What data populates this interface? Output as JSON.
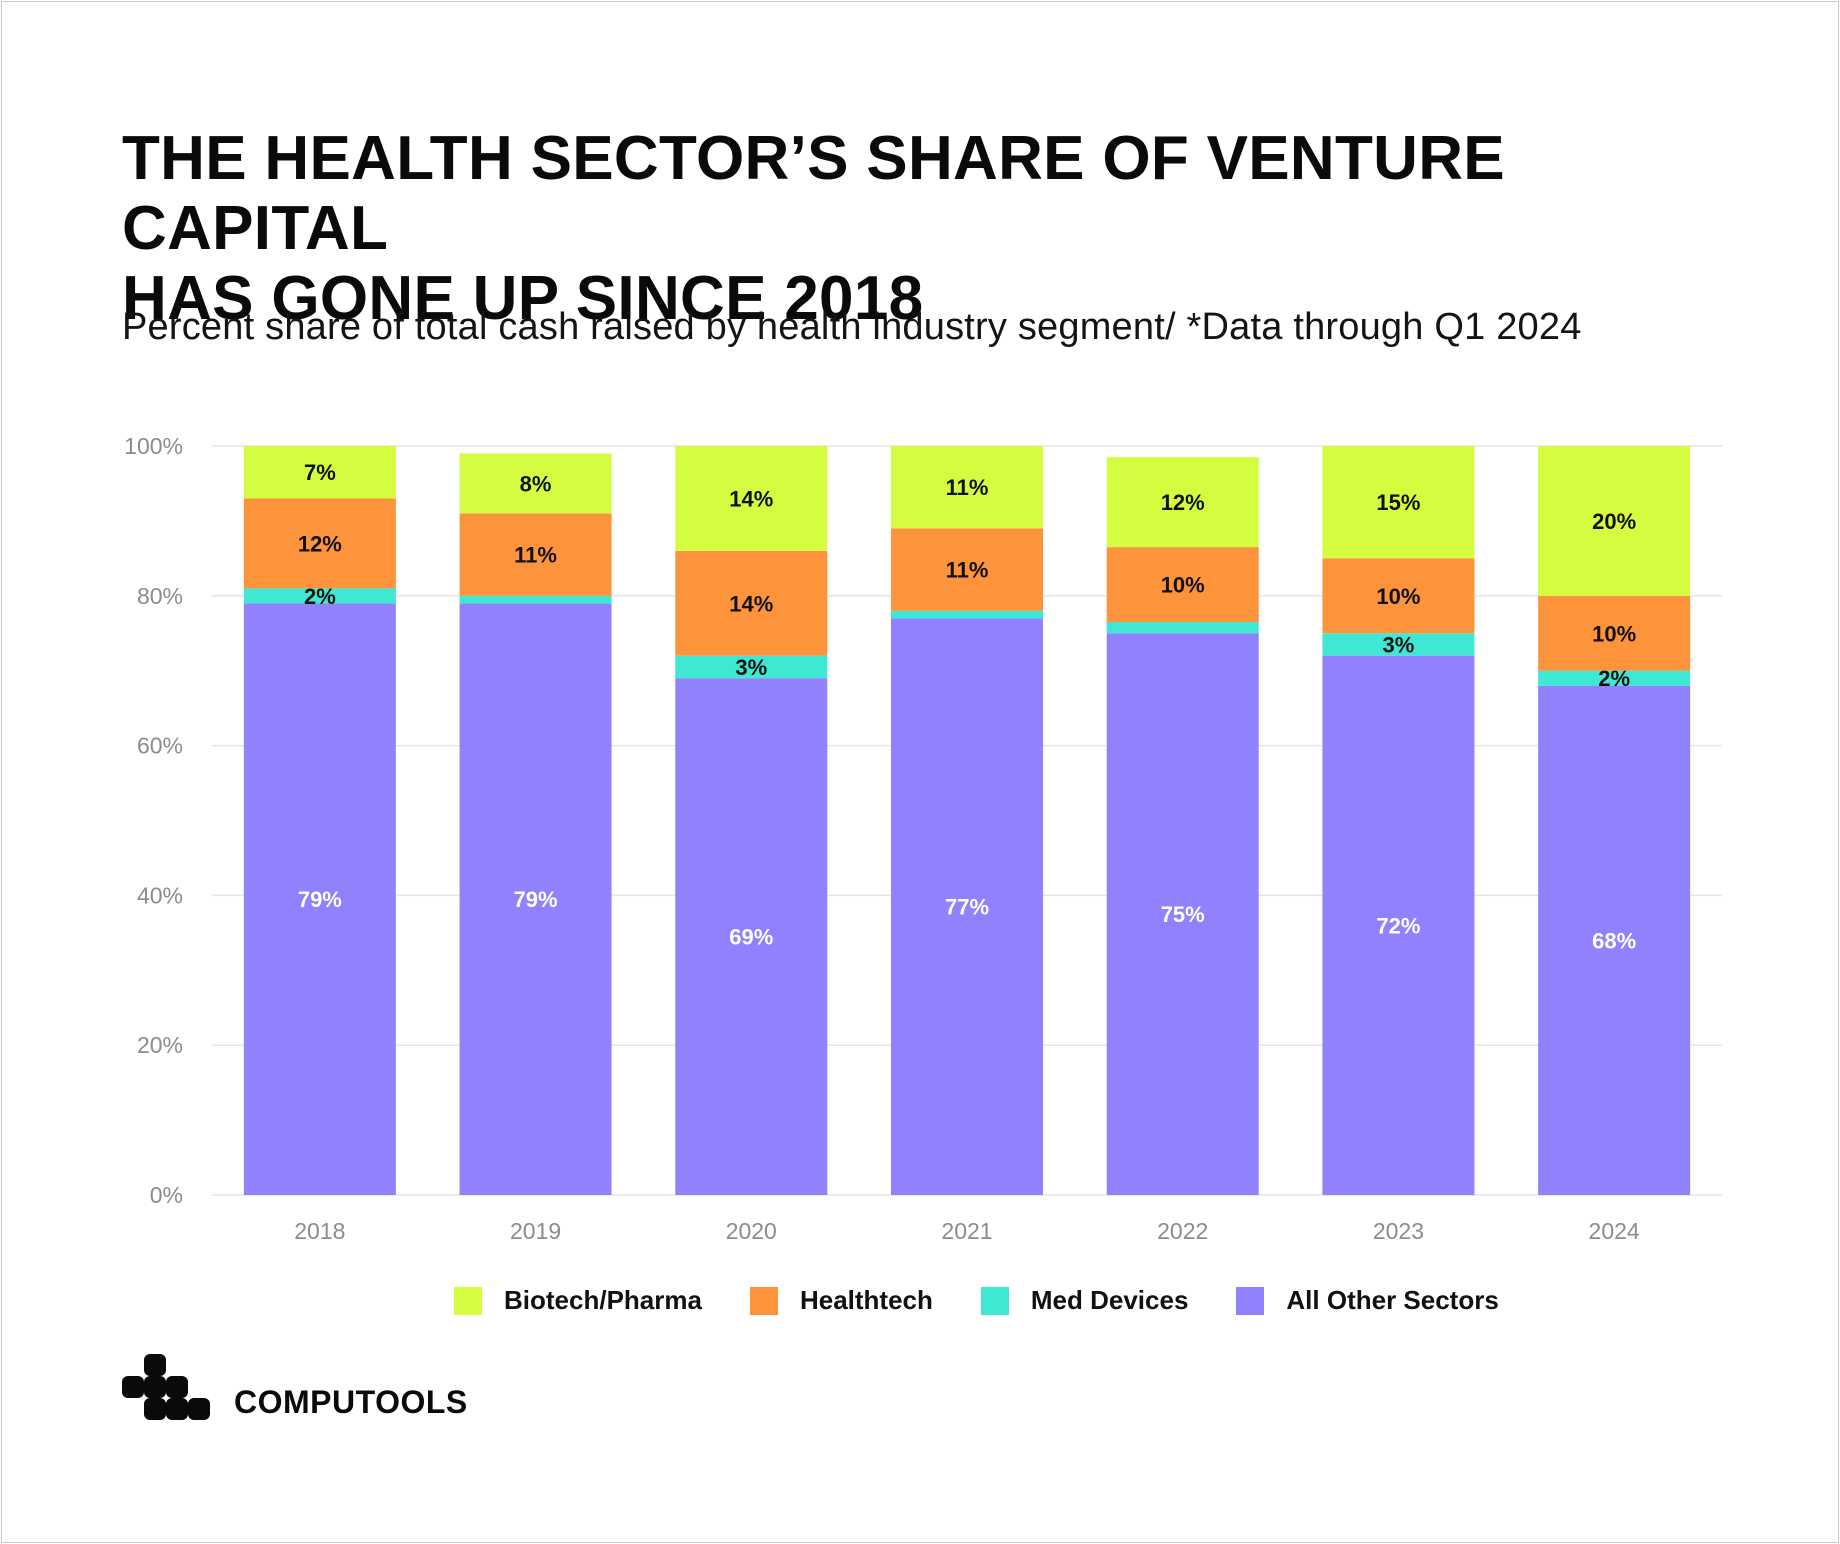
{
  "title_line1": "THE HEALTH SECTOR’S SHARE OF VENTURE CAPITAL",
  "title_line2": "HAS GONE UP SINCE 2018",
  "subtitle": "Percent share of total cash raised by health industry segment/ *Data through Q1 2024",
  "brand": "COMPUTOOLS",
  "chart_data": {
    "type": "bar",
    "stacked": true,
    "categories": [
      "2018",
      "2019",
      "2020",
      "2021",
      "2022",
      "2023",
      "2024"
    ],
    "ylim": [
      0,
      100
    ],
    "yticks": [
      "0%",
      "20%",
      "40%",
      "60%",
      "80%",
      "100%"
    ],
    "series": [
      {
        "name": "All Other Sectors",
        "color": "#9082fd",
        "values": [
          79,
          79,
          69,
          77,
          75,
          72,
          68
        ],
        "labels": [
          "79%",
          "79%",
          "69%",
          "77%",
          "75%",
          "72%",
          "68%"
        ],
        "label_color": "#ffffff"
      },
      {
        "name": "Med Devices",
        "color": "#3ee8d3",
        "values": [
          2,
          1,
          3,
          1,
          1.5,
          3,
          2
        ],
        "labels": [
          "2%",
          "",
          "3%",
          "",
          "",
          "3%",
          "2%"
        ],
        "label_color": "#111111"
      },
      {
        "name": "Healthtech",
        "color": "#fd933a",
        "values": [
          12,
          11,
          14,
          11,
          10,
          10,
          10
        ],
        "labels": [
          "12%",
          "11%",
          "14%",
          "11%",
          "10%",
          "10%",
          "10%"
        ],
        "label_color": "#111111"
      },
      {
        "name": "Biotech/Pharma",
        "color": "#d4fd3f",
        "values": [
          7,
          8,
          14,
          11,
          12,
          15,
          20
        ],
        "labels": [
          "7%",
          "8%",
          "14%",
          "11%",
          "12%",
          "15%",
          "20%"
        ],
        "label_color": "#111111"
      }
    ],
    "legend": [
      "Biotech/Pharma",
      "Healthtech",
      "Med Devices",
      "All Other Sectors"
    ],
    "legend_position": "bottom-center",
    "grid": true
  }
}
